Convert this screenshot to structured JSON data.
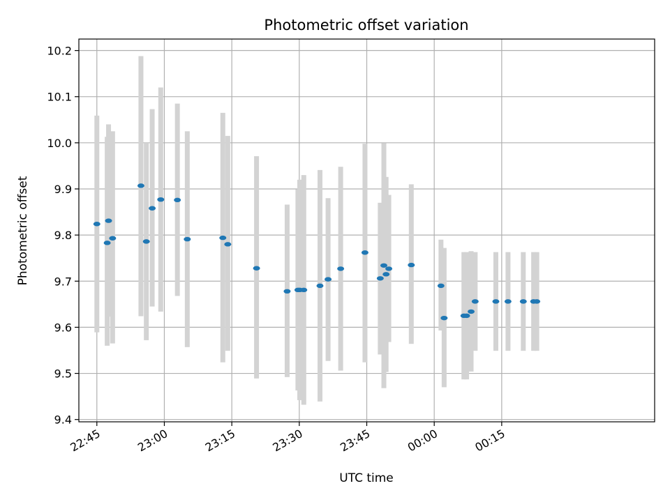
{
  "chart_data": {
    "type": "scatter",
    "title": "Photometric offset variation",
    "xlabel": "UTC time",
    "ylabel": "Photometric offset",
    "ylim": [
      9.395,
      10.225
    ],
    "xlim": [
      "22:41",
      "00:49"
    ],
    "yticks": [
      "9.4",
      "9.5",
      "9.6",
      "9.7",
      "9.8",
      "9.9",
      "10.0",
      "10.1",
      "10.2"
    ],
    "xticks": [
      "22:45",
      "23:00",
      "23:15",
      "23:30",
      "23:45",
      "00:00",
      "00:15"
    ],
    "grid": true,
    "legend": "none",
    "colors": {
      "point": "#1f77b4",
      "error_bar": "#d3d3d3"
    },
    "series": [
      {
        "points": [
          {
            "x": "22:45.0",
            "y": 9.824,
            "lo": 9.589,
            "hi": 10.059
          },
          {
            "x": "22:47.3",
            "y": 9.783,
            "lo": 9.56,
            "hi": 10.013
          },
          {
            "x": "22:47.6",
            "y": 9.831,
            "lo": 9.623,
            "hi": 10.04
          },
          {
            "x": "22:48.5",
            "y": 9.793,
            "lo": 9.565,
            "hi": 10.025
          },
          {
            "x": "22:54.8",
            "y": 9.907,
            "lo": 9.624,
            "hi": 10.188
          },
          {
            "x": "22:56.0",
            "y": 9.786,
            "lo": 9.572,
            "hi": 10.0
          },
          {
            "x": "22:57.3",
            "y": 9.858,
            "lo": 9.645,
            "hi": 10.073
          },
          {
            "x": "22:59.2",
            "y": 9.877,
            "lo": 9.634,
            "hi": 10.12
          },
          {
            "x": "23:02.9",
            "y": 9.876,
            "lo": 9.668,
            "hi": 10.085
          },
          {
            "x": "23:05.1",
            "y": 9.791,
            "lo": 9.557,
            "hi": 10.025
          },
          {
            "x": "23:13.0",
            "y": 9.794,
            "lo": 9.524,
            "hi": 10.065
          },
          {
            "x": "23:14.1",
            "y": 9.78,
            "lo": 9.549,
            "hi": 10.015
          },
          {
            "x": "23:20.5",
            "y": 9.728,
            "lo": 9.489,
            "hi": 9.971
          },
          {
            "x": "23:27.3",
            "y": 9.678,
            "lo": 9.492,
            "hi": 9.866
          },
          {
            "x": "23:29.7",
            "y": 9.681,
            "lo": 9.463,
            "hi": 9.899
          },
          {
            "x": "23:30.1",
            "y": 9.681,
            "lo": 9.442,
            "hi": 9.92
          },
          {
            "x": "23:31.0",
            "y": 9.681,
            "lo": 9.432,
            "hi": 9.93
          },
          {
            "x": "23:34.6",
            "y": 9.69,
            "lo": 9.439,
            "hi": 9.941
          },
          {
            "x": "23:36.4",
            "y": 9.704,
            "lo": 9.527,
            "hi": 9.88
          },
          {
            "x": "23:39.2",
            "y": 9.727,
            "lo": 9.506,
            "hi": 9.948
          },
          {
            "x": "23:44.6",
            "y": 9.762,
            "lo": 9.524,
            "hi": 9.998
          },
          {
            "x": "23:48.0",
            "y": 9.706,
            "lo": 9.541,
            "hi": 9.87
          },
          {
            "x": "23:48.8",
            "y": 9.734,
            "lo": 9.468,
            "hi": 9.999
          },
          {
            "x": "23:49.3",
            "y": 9.715,
            "lo": 9.503,
            "hi": 9.926
          },
          {
            "x": "23:49.9",
            "y": 9.727,
            "lo": 9.568,
            "hi": 9.887
          },
          {
            "x": "23:54.9",
            "y": 9.735,
            "lo": 9.564,
            "hi": 9.91
          },
          {
            "x": "00:01.5",
            "y": 9.69,
            "lo": 9.593,
            "hi": 9.79
          },
          {
            "x": "00:02.2",
            "y": 9.62,
            "lo": 9.47,
            "hi": 9.772
          },
          {
            "x": "00:06.6",
            "y": 9.625,
            "lo": 9.487,
            "hi": 9.763
          },
          {
            "x": "00:07.2",
            "y": 9.625,
            "lo": 9.487,
            "hi": 9.763
          },
          {
            "x": "00:08.2",
            "y": 9.634,
            "lo": 9.504,
            "hi": 9.765
          },
          {
            "x": "00:09.1",
            "y": 9.656,
            "lo": 9.549,
            "hi": 9.763
          },
          {
            "x": "00:13.7",
            "y": 9.656,
            "lo": 9.549,
            "hi": 9.763
          },
          {
            "x": "00:16.4",
            "y": 9.656,
            "lo": 9.549,
            "hi": 9.763
          },
          {
            "x": "00:19.8",
            "y": 9.656,
            "lo": 9.549,
            "hi": 9.763
          },
          {
            "x": "00:22.1",
            "y": 9.656,
            "lo": 9.549,
            "hi": 9.763
          },
          {
            "x": "00:22.8",
            "y": 9.656,
            "lo": 9.549,
            "hi": 9.763
          }
        ]
      }
    ]
  }
}
